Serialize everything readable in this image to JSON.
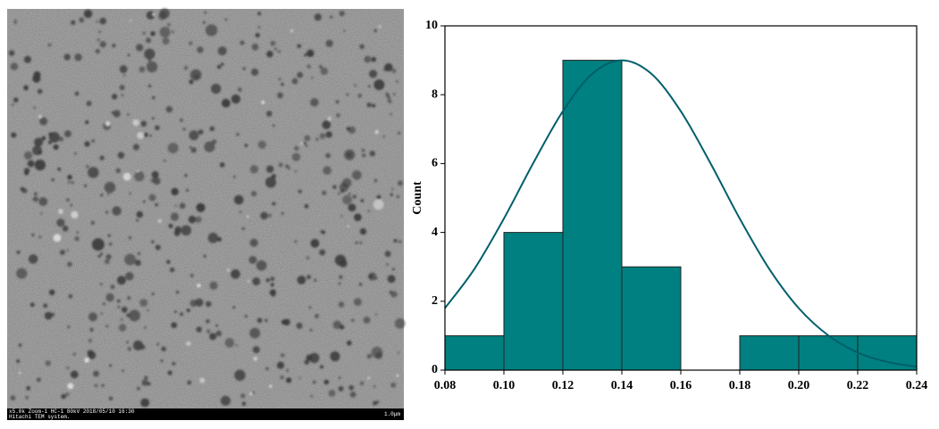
{
  "image": {
    "caption": [
      "x5.0k Zoom-1 HC-1 80kV 2018/05/10 16:30",
      "Hitachi TEM system."
    ],
    "scale_bar": "1.0μm"
  },
  "chart_data": {
    "type": "histogram",
    "y_label": "Count",
    "bins": [
      0.08,
      0.1,
      0.12,
      0.14,
      0.16,
      0.18,
      0.2,
      0.22,
      0.24
    ],
    "values": [
      1,
      4,
      9,
      3,
      0,
      1,
      1,
      1
    ],
    "color": "#008080",
    "fit": {
      "color": "#005f6b",
      "x": [
        0.08,
        0.09,
        0.1,
        0.11,
        0.12,
        0.13,
        0.14,
        0.15,
        0.16,
        0.17,
        0.18,
        0.19,
        0.2,
        0.21,
        0.22,
        0.23,
        0.24
      ],
      "values": [
        1.8,
        2.94,
        4.4,
        6.02,
        7.52,
        8.61,
        9.0,
        8.61,
        7.52,
        6.02,
        4.4,
        2.94,
        1.8,
        1.01,
        0.51,
        0.24,
        0.1
      ]
    },
    "xlim": [
      0.08,
      0.24
    ],
    "xticks": [
      {
        "value": 0.08,
        "label": "0.08"
      },
      {
        "value": 0.1,
        "label": "0.10"
      },
      {
        "value": 0.12,
        "label": "0.12"
      },
      {
        "value": 0.14,
        "label": "0.14"
      },
      {
        "value": 0.16,
        "label": "0.16"
      },
      {
        "value": 0.18,
        "label": "0.18"
      },
      {
        "value": 0.2,
        "label": "0.20"
      },
      {
        "value": 0.22,
        "label": "0.22"
      },
      {
        "value": 0.24,
        "label": "0.24"
      }
    ],
    "ylim": [
      0,
      10
    ],
    "yticks": [
      0,
      2,
      4,
      6,
      8,
      10
    ]
  }
}
